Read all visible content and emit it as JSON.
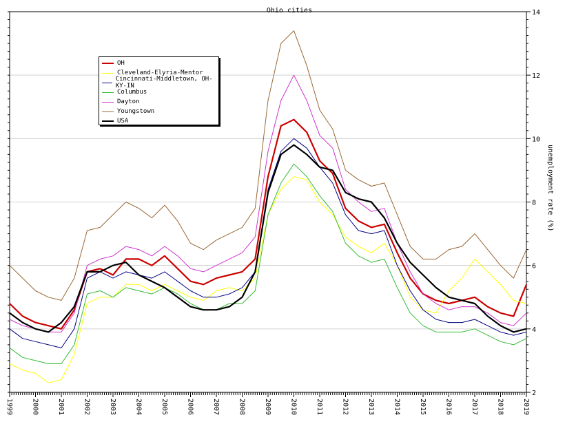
{
  "chart_data": {
    "type": "line",
    "title": "Ohio cities",
    "xlabel": "",
    "ylabel": "unemployment rate (%)",
    "xlim": [
      1999,
      2019
    ],
    "ylim": [
      2,
      14
    ],
    "yticks": [
      2,
      4,
      6,
      8,
      10,
      12,
      14
    ],
    "xticks": [
      "1999",
      "2000",
      "2001",
      "2002",
      "2003",
      "2004",
      "2005",
      "2006",
      "2007",
      "2008",
      "2009",
      "2010",
      "2011",
      "2012",
      "2013",
      "2014",
      "2015",
      "2016",
      "2017",
      "2018",
      "2019"
    ],
    "grid": true,
    "legend_position": "top-left",
    "series": [
      {
        "name": "OH",
        "color": "#cc0000",
        "width": 2.2,
        "x": [
          1999.0,
          1999.5,
          2000.0,
          2000.5,
          2001.0,
          2001.5,
          2002.0,
          2002.5,
          2003.0,
          2003.5,
          2004.0,
          2004.5,
          2005.0,
          2005.5,
          2006.0,
          2006.5,
          2007.0,
          2007.5,
          2008.0,
          2008.5,
          2009.0,
          2009.5,
          2010.0,
          2010.5,
          2011.0,
          2011.5,
          2012.0,
          2012.5,
          2013.0,
          2013.5,
          2014.0,
          2014.5,
          2015.0,
          2015.5,
          2016.0,
          2016.5,
          2017.0,
          2017.5,
          2018.0,
          2018.5,
          2019.0
        ],
        "y": [
          4.8,
          4.4,
          4.2,
          4.1,
          4.0,
          4.6,
          5.8,
          5.9,
          5.7,
          6.2,
          6.2,
          6.0,
          6.3,
          5.9,
          5.5,
          5.4,
          5.6,
          5.7,
          5.8,
          6.2,
          8.8,
          10.4,
          10.6,
          10.2,
          9.3,
          8.9,
          7.8,
          7.4,
          7.2,
          7.3,
          6.4,
          5.6,
          5.1,
          4.9,
          4.8,
          4.9,
          5.0,
          4.7,
          4.5,
          4.4,
          5.4
        ]
      },
      {
        "name": "Cleveland-Elyria-Mentor",
        "color": "#ffff00",
        "width": 1,
        "x": [
          1999.0,
          1999.5,
          2000.0,
          2000.5,
          2001.0,
          2001.5,
          2002.0,
          2002.5,
          2003.0,
          2003.5,
          2004.0,
          2004.5,
          2005.0,
          2005.5,
          2006.0,
          2006.5,
          2007.0,
          2007.5,
          2008.0,
          2008.5,
          2009.0,
          2009.5,
          2010.0,
          2010.5,
          2011.0,
          2011.5,
          2012.0,
          2012.5,
          2013.0,
          2013.5,
          2014.0,
          2014.5,
          2015.0,
          2015.5,
          2016.0,
          2016.5,
          2017.0,
          2017.5,
          2018.0,
          2018.5,
          2019.0
        ],
        "y": [
          2.9,
          2.7,
          2.6,
          2.3,
          2.4,
          3.2,
          4.8,
          5.0,
          5.0,
          5.4,
          5.4,
          5.2,
          5.4,
          5.2,
          5.0,
          4.9,
          5.2,
          5.3,
          5.2,
          5.6,
          7.6,
          8.4,
          8.8,
          8.7,
          8.0,
          7.6,
          6.9,
          6.6,
          6.4,
          6.7,
          6.0,
          5.0,
          4.6,
          4.5,
          5.2,
          5.6,
          6.2,
          5.8,
          5.4,
          4.9,
          4.8
        ]
      },
      {
        "name": "Cincinnati-Middletown, OH-KY-IN",
        "color": "#000080",
        "width": 1,
        "x": [
          1999.0,
          1999.5,
          2000.0,
          2000.5,
          2001.0,
          2001.5,
          2002.0,
          2002.5,
          2003.0,
          2003.5,
          2004.0,
          2004.5,
          2005.0,
          2005.5,
          2006.0,
          2006.5,
          2007.0,
          2007.5,
          2008.0,
          2008.5,
          2009.0,
          2009.5,
          2010.0,
          2010.5,
          2011.0,
          2011.5,
          2012.0,
          2012.5,
          2013.0,
          2013.5,
          2014.0,
          2014.5,
          2015.0,
          2015.5,
          2016.0,
          2016.5,
          2017.0,
          2017.5,
          2018.0,
          2018.5,
          2019.0
        ],
        "y": [
          4.0,
          3.7,
          3.6,
          3.5,
          3.4,
          4.0,
          5.6,
          5.8,
          5.6,
          5.8,
          5.7,
          5.6,
          5.8,
          5.5,
          5.2,
          5.0,
          5.0,
          5.1,
          5.3,
          5.8,
          8.4,
          9.6,
          10.0,
          9.7,
          9.1,
          8.6,
          7.6,
          7.1,
          7.0,
          7.1,
          6.0,
          5.2,
          4.6,
          4.3,
          4.2,
          4.2,
          4.3,
          4.1,
          3.9,
          3.8,
          3.9
        ]
      },
      {
        "name": "Columbus",
        "color": "#33bb33",
        "width": 1,
        "x": [
          1999.0,
          1999.5,
          2000.0,
          2000.5,
          2001.0,
          2001.5,
          2002.0,
          2002.5,
          2003.0,
          2003.5,
          2004.0,
          2004.5,
          2005.0,
          2005.5,
          2006.0,
          2006.5,
          2007.0,
          2007.5,
          2008.0,
          2008.5,
          2009.0,
          2009.5,
          2010.0,
          2010.5,
          2011.0,
          2011.5,
          2012.0,
          2012.5,
          2013.0,
          2013.5,
          2014.0,
          2014.5,
          2015.0,
          2015.5,
          2016.0,
          2016.5,
          2017.0,
          2017.5,
          2018.0,
          2018.5,
          2019.0
        ],
        "y": [
          3.4,
          3.1,
          3.0,
          2.9,
          2.9,
          3.5,
          5.1,
          5.2,
          5.0,
          5.3,
          5.2,
          5.1,
          5.3,
          5.1,
          4.8,
          4.6,
          4.6,
          4.8,
          4.8,
          5.2,
          7.6,
          8.6,
          9.2,
          8.8,
          8.2,
          7.7,
          6.7,
          6.3,
          6.1,
          6.2,
          5.3,
          4.5,
          4.1,
          3.9,
          3.9,
          3.9,
          4.0,
          3.8,
          3.6,
          3.5,
          3.7
        ]
      },
      {
        "name": "Dayton",
        "color": "#cc33cc",
        "width": 1,
        "x": [
          1999.0,
          1999.5,
          2000.0,
          2000.5,
          2001.0,
          2001.5,
          2002.0,
          2002.5,
          2003.0,
          2003.5,
          2004.0,
          2004.5,
          2005.0,
          2005.5,
          2006.0,
          2006.5,
          2007.0,
          2007.5,
          2008.0,
          2008.5,
          2009.0,
          2009.5,
          2010.0,
          2010.5,
          2011.0,
          2011.5,
          2012.0,
          2012.5,
          2013.0,
          2013.5,
          2014.0,
          2014.5,
          2015.0,
          2015.5,
          2016.0,
          2016.5,
          2017.0,
          2017.5,
          2018.0,
          2018.5,
          2019.0
        ],
        "y": [
          4.3,
          4.1,
          4.0,
          3.9,
          3.9,
          4.5,
          6.0,
          6.2,
          6.3,
          6.6,
          6.5,
          6.3,
          6.6,
          6.3,
          5.9,
          5.8,
          6.0,
          6.2,
          6.4,
          6.9,
          9.6,
          11.2,
          12.0,
          11.2,
          10.1,
          9.7,
          8.4,
          8.0,
          7.7,
          7.8,
          6.7,
          5.8,
          5.1,
          4.8,
          4.6,
          4.7,
          4.7,
          4.5,
          4.2,
          4.1,
          4.5
        ]
      },
      {
        "name": "Youngstown",
        "color": "#996633",
        "width": 1,
        "x": [
          1999.0,
          1999.5,
          2000.0,
          2000.5,
          2001.0,
          2001.5,
          2002.0,
          2002.5,
          2003.0,
          2003.5,
          2004.0,
          2004.5,
          2005.0,
          2005.5,
          2006.0,
          2006.5,
          2007.0,
          2007.5,
          2008.0,
          2008.5,
          2009.0,
          2009.5,
          2010.0,
          2010.5,
          2011.0,
          2011.5,
          2012.0,
          2012.5,
          2013.0,
          2013.5,
          2014.0,
          2014.5,
          2015.0,
          2015.5,
          2016.0,
          2016.5,
          2017.0,
          2017.5,
          2018.0,
          2018.5,
          2019.0
        ],
        "y": [
          6.0,
          5.6,
          5.2,
          5.0,
          4.9,
          5.6,
          7.1,
          7.2,
          7.6,
          8.0,
          7.8,
          7.5,
          7.9,
          7.4,
          6.7,
          6.5,
          6.8,
          7.0,
          7.2,
          7.8,
          11.2,
          13.0,
          13.4,
          12.3,
          10.9,
          10.3,
          9.0,
          8.7,
          8.5,
          8.6,
          7.6,
          6.6,
          6.2,
          6.2,
          6.5,
          6.6,
          7.0,
          6.5,
          6.0,
          5.6,
          6.5
        ]
      },
      {
        "name": "USA",
        "color": "#000000",
        "width": 2.2,
        "x": [
          1999.0,
          1999.5,
          2000.0,
          2000.5,
          2001.0,
          2001.5,
          2002.0,
          2002.5,
          2003.0,
          2003.5,
          2004.0,
          2004.5,
          2005.0,
          2005.5,
          2006.0,
          2006.5,
          2007.0,
          2007.5,
          2008.0,
          2008.5,
          2009.0,
          2009.5,
          2010.0,
          2010.5,
          2011.0,
          2011.5,
          2012.0,
          2012.5,
          2013.0,
          2013.5,
          2014.0,
          2014.5,
          2015.0,
          2015.5,
          2016.0,
          2016.5,
          2017.0,
          2017.5,
          2018.0,
          2018.5,
          2019.0
        ],
        "y": [
          4.5,
          4.2,
          4.0,
          3.9,
          4.2,
          4.7,
          5.8,
          5.8,
          6.0,
          6.1,
          5.7,
          5.5,
          5.3,
          5.0,
          4.7,
          4.6,
          4.6,
          4.7,
          5.0,
          5.8,
          8.3,
          9.5,
          9.8,
          9.5,
          9.1,
          9.0,
          8.3,
          8.1,
          8.0,
          7.5,
          6.7,
          6.1,
          5.7,
          5.3,
          5.0,
          4.9,
          4.8,
          4.4,
          4.1,
          3.9,
          4.0
        ]
      }
    ]
  }
}
